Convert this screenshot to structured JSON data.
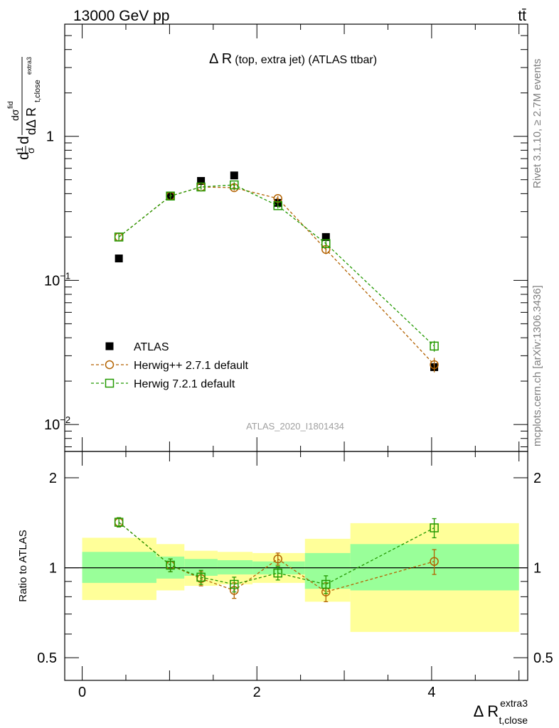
{
  "header": {
    "energy_label": "13000 GeV pp",
    "process_label": "tt̄"
  },
  "side_labels": {
    "rivet": "Rivet 3.1.10, ≥ 2.7M events",
    "mcplots": "mcplots.cern.ch [arXiv:1306.3436]"
  },
  "chart_data": {
    "type": "scatter",
    "title_main": "Δ R",
    "title_sub": "(top, extra jet) (ATLAS ttbar)",
    "analysis_label": "ATLAS_2020_I1801434",
    "xlabel": "Δ R",
    "xlabel_sup": "extra3",
    "xlabel_sub": "t,close",
    "ylabel": "d(1/σ)dσ/dΔR_t,close^extra3",
    "yscale": "log",
    "xlim": [
      -0.2,
      5.1
    ],
    "ylim": [
      0.0065,
      6.0
    ],
    "x_ticks": [
      "0",
      "2",
      "4"
    ],
    "y_tick_labels": [
      "10",
      "1",
      "10"
    ],
    "y_tick_exponents": [
      "−2",
      "",
      "−1"
    ],
    "legend_position": "lower-left",
    "x_bins": [
      [
        0,
        0.85
      ],
      [
        0.85,
        1.17
      ],
      [
        1.17,
        1.55
      ],
      [
        1.55,
        1.95
      ],
      [
        1.95,
        2.55
      ],
      [
        2.55,
        3.07
      ],
      [
        3.07,
        5.0
      ]
    ],
    "series": [
      {
        "name": "ATLAS",
        "color": "#000000",
        "marker": "filled-square",
        "x": [
          0.42,
          1.01,
          1.36,
          1.74,
          2.24,
          2.79,
          4.03
        ],
        "y": [
          0.142,
          0.385,
          0.49,
          0.535,
          0.345,
          0.2,
          0.025
        ]
      },
      {
        "name": "Herwig++ 2.7.1 default",
        "color": "#b36200",
        "marker": "open-circle",
        "x": [
          0.42,
          1.01,
          1.36,
          1.74,
          2.24,
          2.79,
          4.03
        ],
        "y": [
          0.2,
          0.385,
          0.445,
          0.44,
          0.37,
          0.164,
          0.026
        ],
        "yerr": [
          0.012,
          0.02,
          0.018,
          0.02,
          0.015,
          0.012,
          0.003
        ]
      },
      {
        "name": "Herwig 7.2.1 default",
        "color": "#229900",
        "marker": "open-square",
        "x": [
          0.42,
          1.01,
          1.36,
          1.74,
          2.24,
          2.79,
          4.03
        ],
        "y": [
          0.2,
          0.385,
          0.445,
          0.46,
          0.33,
          0.18,
          0.035
        ],
        "yerr": [
          0.012,
          0.02,
          0.018,
          0.02,
          0.015,
          0.012,
          0.003
        ]
      }
    ],
    "ratio": {
      "ylabel": "Ratio to ATLAS",
      "yscale": "log",
      "ylim": [
        0.42,
        2.45
      ],
      "y_ticks": [
        "0.5",
        "1",
        "2"
      ],
      "reference": 1,
      "band_inner": [
        [
          0.89,
          1.13
        ],
        [
          0.92,
          1.09
        ],
        [
          0.94,
          1.07
        ],
        [
          0.95,
          1.06
        ],
        [
          0.95,
          1.05
        ],
        [
          0.85,
          1.12
        ],
        [
          0.84,
          1.2
        ]
      ],
      "band_outer": [
        [
          0.78,
          1.26
        ],
        [
          0.84,
          1.2
        ],
        [
          0.87,
          1.14
        ],
        [
          0.88,
          1.13
        ],
        [
          0.89,
          1.12
        ],
        [
          0.77,
          1.25
        ],
        [
          0.61,
          1.41
        ]
      ],
      "series": [
        {
          "name": "Herwig++ 2.7.1 default",
          "color": "#b36200",
          "y": [
            1.42,
            1.02,
            0.92,
            0.84,
            1.07,
            0.83,
            1.05
          ],
          "yerr": [
            0.05,
            0.05,
            0.05,
            0.05,
            0.05,
            0.06,
            0.1
          ]
        },
        {
          "name": "Herwig 7.2.1 default",
          "color": "#229900",
          "y": [
            1.42,
            1.02,
            0.93,
            0.88,
            0.96,
            0.88,
            1.36
          ],
          "yerr": [
            0.05,
            0.05,
            0.05,
            0.05,
            0.05,
            0.06,
            0.1
          ]
        }
      ]
    }
  }
}
